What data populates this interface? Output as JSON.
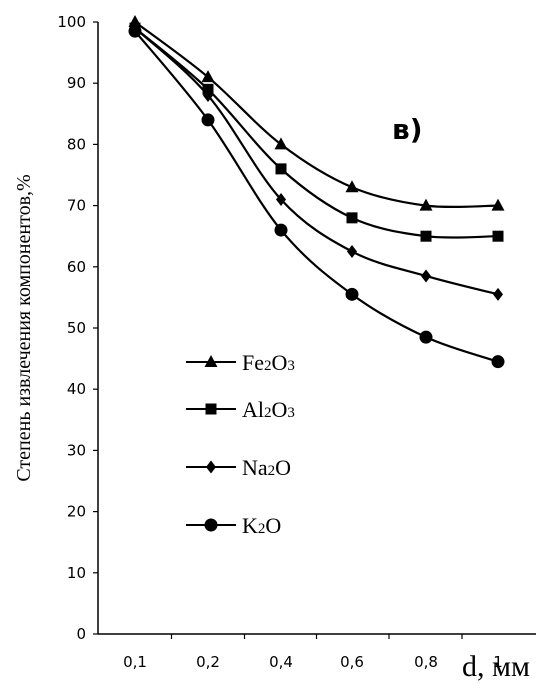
{
  "chart_data": {
    "type": "line",
    "panel_label": "в)",
    "xlabel": "d, мм",
    "ylabel": "Степень извлечения компонентов,%",
    "categories": [
      "0,1",
      "0,2",
      "0,4",
      "0,6",
      "0,8",
      "1"
    ],
    "ylim": [
      0,
      100
    ],
    "yticks": [
      0,
      10,
      20,
      30,
      40,
      50,
      60,
      70,
      80,
      90,
      100
    ],
    "grid": false,
    "legend_position": "left",
    "series": [
      {
        "name": "Fe2O3",
        "base": "Fe",
        "sub1": "2",
        "mid": "O",
        "sub2": "3",
        "marker": "triangle",
        "values": [
          100,
          91,
          80,
          73,
          70,
          70
        ]
      },
      {
        "name": "Al2O3",
        "base": "Al",
        "sub1": "2",
        "mid": "O",
        "sub2": "3",
        "marker": "square",
        "values": [
          99,
          89,
          76,
          68,
          65,
          65
        ]
      },
      {
        "name": "Na2O",
        "base": "Na",
        "sub1": "2",
        "mid": "O",
        "sub2": "",
        "marker": "diamond",
        "values": [
          99,
          88,
          71,
          62.5,
          58.5,
          55.5
        ]
      },
      {
        "name": "K2O",
        "base": "K",
        "sub1": "2",
        "mid": "O",
        "sub2": "",
        "marker": "circle",
        "values": [
          98.5,
          84,
          66,
          55.5,
          48.5,
          44.5
        ]
      }
    ]
  }
}
